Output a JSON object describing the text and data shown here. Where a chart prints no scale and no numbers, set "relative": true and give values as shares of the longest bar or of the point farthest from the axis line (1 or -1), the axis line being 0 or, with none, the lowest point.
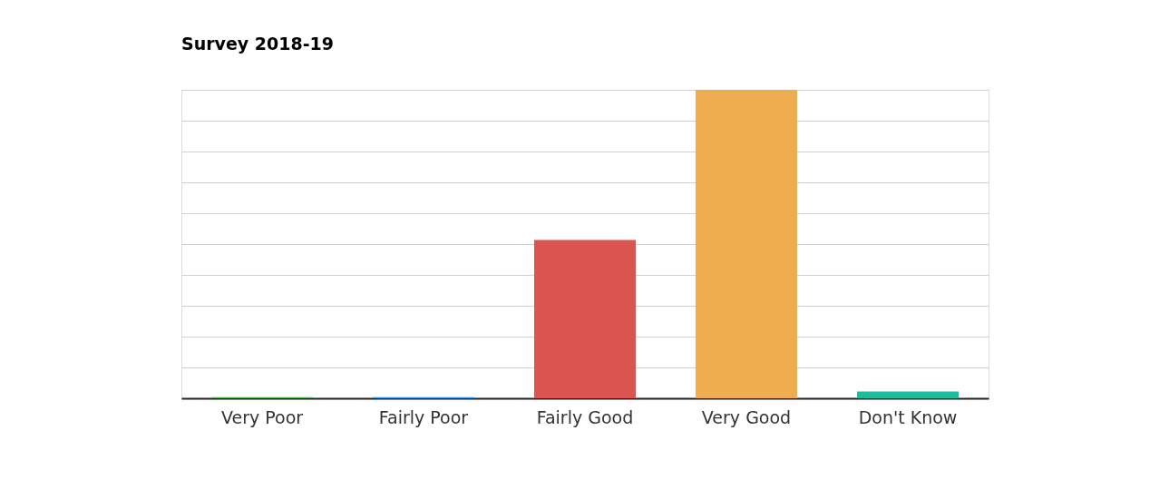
{
  "chart_data": {
    "type": "bar",
    "title": "Survey 2018-19",
    "relative": true,
    "grid": "y",
    "categories": [
      "Very Poor",
      "Fairly Poor",
      "Fairly Good",
      "Very Good",
      "Don't Know"
    ],
    "values": [
      0.004,
      0.004,
      0.513,
      1,
      0.022
    ],
    "colors": [
      "#4caf50",
      "#2196f3",
      "#db5550",
      "#efad4f",
      "#1abc9c"
    ]
  }
}
